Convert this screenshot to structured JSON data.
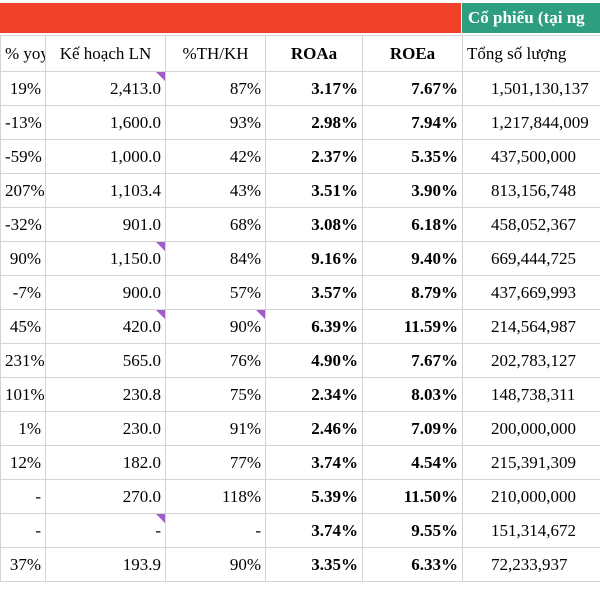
{
  "banner": {
    "right_title": "Cổ phiếu (tại ng"
  },
  "table": {
    "header": [
      "% yoy",
      "Kế hoạch LN",
      "%TH/KH",
      "ROAa",
      "ROEa",
      "Tổng số lượng"
    ],
    "rows": [
      [
        "19%",
        "2,413.0",
        "87%",
        "3.17%",
        "7.67%",
        "1,501,130,137"
      ],
      [
        "-13%",
        "1,600.0",
        "93%",
        "2.98%",
        "7.94%",
        "1,217,844,009"
      ],
      [
        "-59%",
        "1,000.0",
        "42%",
        "2.37%",
        "5.35%",
        "437,500,000"
      ],
      [
        "207%",
        "1,103.4",
        "43%",
        "3.51%",
        "3.90%",
        "813,156,748"
      ],
      [
        "-32%",
        "901.0",
        "68%",
        "3.08%",
        "6.18%",
        "458,052,367"
      ],
      [
        "90%",
        "1,150.0",
        "84%",
        "9.16%",
        "9.40%",
        "669,444,725"
      ],
      [
        "-7%",
        "900.0",
        "57%",
        "3.57%",
        "8.79%",
        "437,669,993"
      ],
      [
        "45%",
        "420.0",
        "90%",
        "6.39%",
        "11.59%",
        "214,564,987"
      ],
      [
        "231%",
        "565.0",
        "76%",
        "4.90%",
        "7.67%",
        "202,783,127"
      ],
      [
        "101%",
        "230.8",
        "75%",
        "2.34%",
        "8.03%",
        "148,738,311"
      ],
      [
        "1%",
        "230.0",
        "91%",
        "2.46%",
        "7.09%",
        "200,000,000"
      ],
      [
        "12%",
        "182.0",
        "77%",
        "3.74%",
        "4.54%",
        "215,391,309"
      ],
      [
        "-",
        "270.0",
        "118%",
        "5.39%",
        "11.50%",
        "210,000,000"
      ],
      [
        "-",
        "-",
        "-",
        "3.74%",
        "9.55%",
        "151,314,672"
      ],
      [
        "37%",
        "193.9",
        "90%",
        "3.35%",
        "6.33%",
        "72,233,937"
      ]
    ]
  }
}
